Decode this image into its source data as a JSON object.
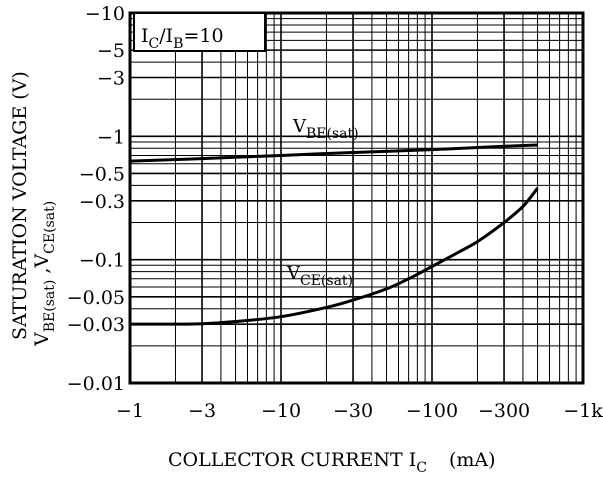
{
  "chart_data": {
    "type": "line",
    "title": "",
    "x_scale": "log",
    "y_scale": "log",
    "xlim": [
      -1,
      -1000
    ],
    "ylim": [
      -0.01,
      -10
    ],
    "grid": true,
    "xlabel": {
      "main": "COLLECTOR CURRENT I",
      "sub": "C",
      "unit": "(mA)"
    },
    "ylabel": {
      "line1": "SATURATION VOLTAGE  (V)",
      "line2_parts": [
        {
          "t": "V",
          "sub": false
        },
        {
          "t": "BE(sat)",
          "sub": true
        },
        {
          "t": " ,V",
          "sub": false
        },
        {
          "t": "CE(sat)",
          "sub": true
        }
      ]
    },
    "x_ticks": [
      {
        "v": -1,
        "label": "−1"
      },
      {
        "v": -3,
        "label": "−3"
      },
      {
        "v": -10,
        "label": "−10"
      },
      {
        "v": -30,
        "label": "−30"
      },
      {
        "v": -100,
        "label": "−100"
      },
      {
        "v": -300,
        "label": "−300"
      },
      {
        "v": -1000,
        "label": "−1k"
      }
    ],
    "y_ticks": [
      {
        "v": -10,
        "label": "−10"
      },
      {
        "v": -5,
        "label": "−5"
      },
      {
        "v": -3,
        "label": "−3"
      },
      {
        "v": -1,
        "label": "−1"
      },
      {
        "v": -0.5,
        "label": "−0.5"
      },
      {
        "v": -0.3,
        "label": "−0.3"
      },
      {
        "v": -0.1,
        "label": "−0.1"
      },
      {
        "v": -0.05,
        "label": "−0.05"
      },
      {
        "v": -0.03,
        "label": "−0.03"
      },
      {
        "v": -0.01,
        "label": "−0.01"
      }
    ],
    "annotations": [
      {
        "main": "I",
        "sub": "C",
        "rest": "/I",
        "sub2": "B",
        "tail": "=10"
      }
    ],
    "series": [
      {
        "name": "V_BE(sat)",
        "label_main": "V",
        "label_sub": "BE(sat)",
        "x": [
          -1,
          -3,
          -10,
          -30,
          -100,
          -300,
          -500
        ],
        "y": [
          -0.63,
          -0.66,
          -0.7,
          -0.74,
          -0.78,
          -0.83,
          -0.85
        ]
      },
      {
        "name": "V_CE(sat)",
        "label_main": "V",
        "label_sub": "CE(sat)",
        "x": [
          -1,
          -2,
          -3,
          -5,
          -10,
          -20,
          -30,
          -50,
          -70,
          -100,
          -150,
          -200,
          -300,
          -400,
          -500
        ],
        "y": [
          -0.03,
          -0.03,
          -0.0302,
          -0.0315,
          -0.0345,
          -0.041,
          -0.047,
          -0.058,
          -0.07,
          -0.088,
          -0.115,
          -0.14,
          -0.2,
          -0.27,
          -0.38
        ]
      }
    ]
  }
}
